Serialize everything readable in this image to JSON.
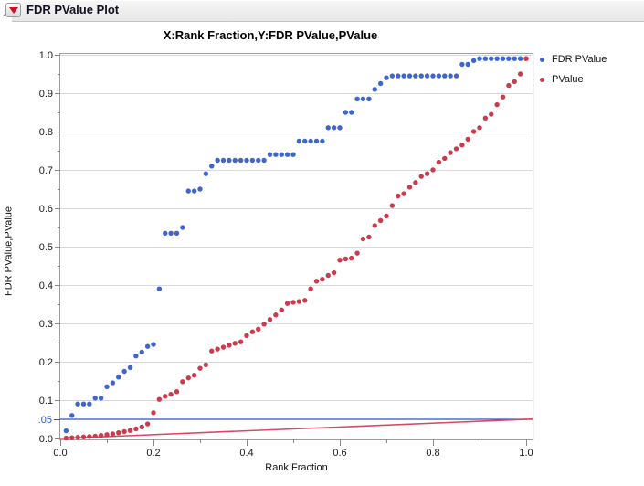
{
  "header": {
    "title": "FDR PValue Plot"
  },
  "chart_data": {
    "type": "scatter",
    "title": "X:Rank Fraction,Y:FDR PValue,PValue",
    "xlabel": "Rank Fraction",
    "ylabel": "FDR PValue,PValue",
    "xlim": [
      0,
      1.014
    ],
    "ylim": [
      0,
      1.0
    ],
    "grid": "horizontal",
    "legend_position": "right",
    "x_tick_labels": [
      {
        "v": 0.0,
        "label": "0.0"
      },
      {
        "v": 0.2,
        "label": "0.2"
      },
      {
        "v": 0.4,
        "label": "0.4"
      },
      {
        "v": 0.6,
        "label": "0.6"
      },
      {
        "v": 0.8,
        "label": "0.8"
      },
      {
        "v": 1.0,
        "label": "1.0"
      }
    ],
    "x_minor_ticks": [
      0.1,
      0.3,
      0.5,
      0.7,
      0.9
    ],
    "y_tick_labels": [
      {
        "v": 0.0,
        "label": "0.0"
      },
      {
        "v": 0.1,
        "label": "0.1"
      },
      {
        "v": 0.2,
        "label": "0.2"
      },
      {
        "v": 0.3,
        "label": "0.3"
      },
      {
        "v": 0.4,
        "label": "0.4"
      },
      {
        "v": 0.5,
        "label": "0.5"
      },
      {
        "v": 0.6,
        "label": "0.6"
      },
      {
        "v": 0.7,
        "label": "0.7"
      },
      {
        "v": 0.8,
        "label": "0.8"
      },
      {
        "v": 0.9,
        "label": "0.9"
      },
      {
        "v": 1.0,
        "label": "1.0"
      }
    ],
    "y_minor_ticks": [
      0.05,
      0.15,
      0.25,
      0.35,
      0.45,
      0.55,
      0.65,
      0.75,
      0.85,
      0.95
    ],
    "special_y_label": {
      "v": 0.05,
      "label": ".05",
      "color": "#2656c8"
    },
    "x": [
      0.0125,
      0.025,
      0.0375,
      0.05,
      0.0625,
      0.075,
      0.0875,
      0.1,
      0.1125,
      0.125,
      0.1375,
      0.15,
      0.1625,
      0.175,
      0.1875,
      0.2,
      0.2125,
      0.225,
      0.2375,
      0.25,
      0.2625,
      0.275,
      0.2875,
      0.3,
      0.3125,
      0.325,
      0.3375,
      0.35,
      0.3625,
      0.375,
      0.3875,
      0.4,
      0.4125,
      0.425,
      0.4375,
      0.45,
      0.4625,
      0.475,
      0.4875,
      0.5,
      0.5125,
      0.525,
      0.5375,
      0.55,
      0.5625,
      0.575,
      0.5875,
      0.6,
      0.6125,
      0.625,
      0.6375,
      0.65,
      0.6625,
      0.675,
      0.6875,
      0.7,
      0.7125,
      0.725,
      0.7375,
      0.75,
      0.7625,
      0.775,
      0.7875,
      0.8,
      0.8125,
      0.825,
      0.8375,
      0.85,
      0.8625,
      0.875,
      0.8875,
      0.9,
      0.9125,
      0.925,
      0.9375,
      0.95,
      0.9625,
      0.975,
      0.9875,
      1.0
    ],
    "series": [
      {
        "name": "FDR PValue",
        "color": "#3f66cb",
        "values": [
          0.02,
          0.06,
          0.09,
          0.09,
          0.09,
          0.105,
          0.105,
          0.135,
          0.145,
          0.16,
          0.175,
          0.185,
          0.215,
          0.225,
          0.24,
          0.245,
          0.39,
          0.535,
          0.535,
          0.535,
          0.55,
          0.645,
          0.645,
          0.65,
          0.69,
          0.71,
          0.725,
          0.725,
          0.725,
          0.725,
          0.725,
          0.725,
          0.725,
          0.725,
          0.725,
          0.74,
          0.74,
          0.74,
          0.74,
          0.74,
          0.775,
          0.775,
          0.775,
          0.775,
          0.775,
          0.81,
          0.81,
          0.81,
          0.85,
          0.85,
          0.885,
          0.885,
          0.885,
          0.91,
          0.925,
          0.94,
          0.945,
          0.945,
          0.945,
          0.945,
          0.945,
          0.945,
          0.945,
          0.945,
          0.945,
          0.945,
          0.945,
          0.945,
          0.975,
          0.975,
          0.985,
          0.99,
          0.99,
          0.99,
          0.99,
          0.99,
          0.99,
          0.99,
          0.99,
          0.99
        ]
      },
      {
        "name": "PValue",
        "color": "#cb3a4d",
        "values": [
          0.001,
          0.002,
          0.003,
          0.004,
          0.005,
          0.006,
          0.008,
          0.01,
          0.012,
          0.015,
          0.018,
          0.021,
          0.025,
          0.03,
          0.038,
          0.067,
          0.102,
          0.11,
          0.115,
          0.122,
          0.148,
          0.158,
          0.165,
          0.183,
          0.192,
          0.228,
          0.233,
          0.238,
          0.243,
          0.248,
          0.252,
          0.268,
          0.278,
          0.285,
          0.298,
          0.31,
          0.322,
          0.335,
          0.352,
          0.355,
          0.357,
          0.36,
          0.39,
          0.41,
          0.415,
          0.425,
          0.432,
          0.465,
          0.468,
          0.47,
          0.483,
          0.52,
          0.525,
          0.555,
          0.568,
          0.58,
          0.607,
          0.632,
          0.638,
          0.655,
          0.667,
          0.683,
          0.69,
          0.7,
          0.72,
          0.73,
          0.745,
          0.755,
          0.765,
          0.78,
          0.8,
          0.81,
          0.835,
          0.845,
          0.87,
          0.89,
          0.92,
          0.93,
          0.95,
          0.99
        ]
      }
    ],
    "reference_lines": [
      {
        "name": "alpha-reference-line",
        "orientation": "horizontal",
        "y": 0.05,
        "color": "#2656c8",
        "width": 1.2
      },
      {
        "name": "bh-reference-line",
        "orientation": "diagonal",
        "x1": 0,
        "y1": 0,
        "x2": 1.014,
        "y2": 0.0507,
        "color": "#d84961",
        "width": 1.6
      }
    ],
    "legend": [
      {
        "label": "FDR PValue",
        "color": "#3f66cb"
      },
      {
        "label": "PValue",
        "color": "#cb3a4d"
      }
    ],
    "colors": {
      "grid": "#d9d9d9",
      "frame": "#9e9e9e",
      "tick": "#878787",
      "text": "#1a1a1a"
    }
  }
}
